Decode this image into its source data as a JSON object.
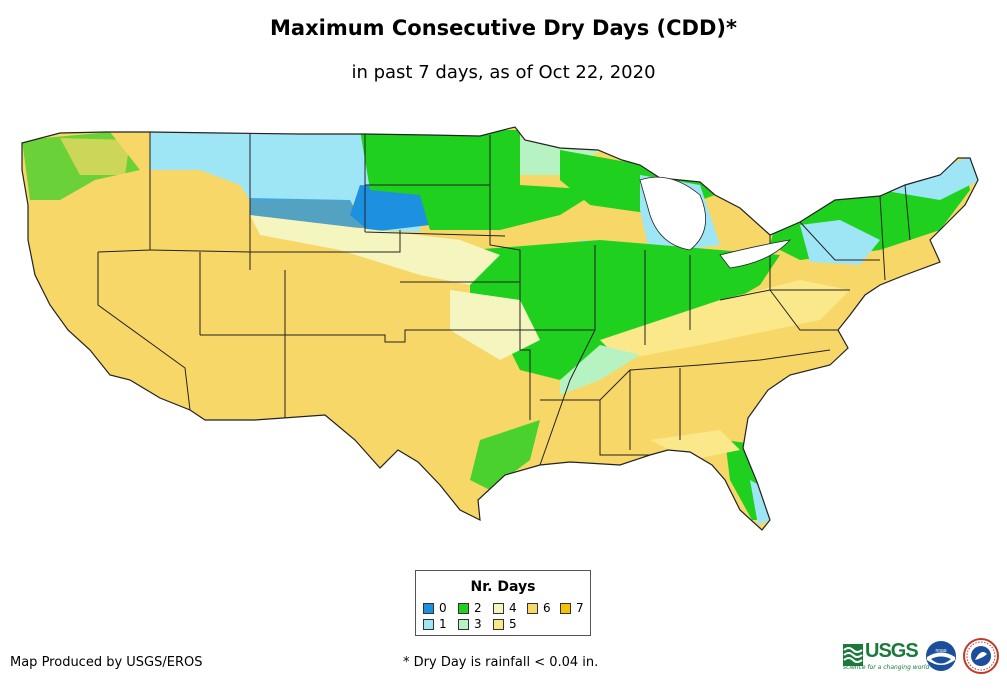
{
  "title": "Maximum Consecutive Dry Days (CDD)*",
  "subtitle": "in past 7 days, as of Oct 22, 2020",
  "legend": {
    "title": "Nr. Days",
    "items": [
      {
        "label": "0",
        "color": "#1e90e0"
      },
      {
        "label": "1",
        "color": "#9ee6f5"
      },
      {
        "label": "2",
        "color": "#1fd01f"
      },
      {
        "label": "3",
        "color": "#b7f2c2"
      },
      {
        "label": "4",
        "color": "#f5f5c0"
      },
      {
        "label": "5",
        "color": "#fbe88a"
      },
      {
        "label": "6",
        "color": "#f7d767"
      },
      {
        "label": "7",
        "color": "#f6c100"
      }
    ]
  },
  "footer": {
    "credit": "Map Produced by USGS/EROS",
    "footnote": "* Dry Day is rainfall < 0.04 in."
  },
  "logos": {
    "usgs_text": "USGS",
    "usgs_tagline": "science for a changing world",
    "noaa_text": "noaa"
  }
}
